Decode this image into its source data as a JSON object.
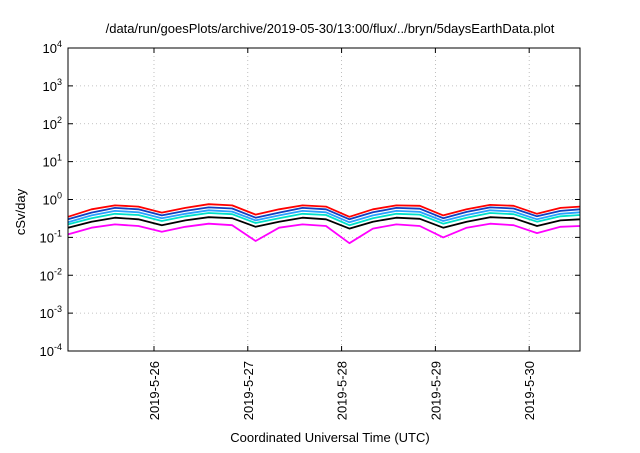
{
  "chart_data": {
    "type": "line",
    "title": "/data/run/goesPlots/archive/2019-05-30/13:00/flux/../bryn/5daysEarthData.plot",
    "xlabel": "Coordinated Universal Time (UTC)",
    "ylabel": "cSv/day",
    "yscale": "log",
    "ylim": [
      0.0001,
      10000
    ],
    "y_ticks": [
      {
        "value": 0.0001,
        "mantissa": "10",
        "exp": "-4"
      },
      {
        "value": 0.001,
        "mantissa": "10",
        "exp": "-3"
      },
      {
        "value": 0.01,
        "mantissa": "10",
        "exp": "-2"
      },
      {
        "value": 0.1,
        "mantissa": "10",
        "exp": "-1"
      },
      {
        "value": 1,
        "mantissa": "10",
        "exp": "0"
      },
      {
        "value": 10,
        "mantissa": "10",
        "exp": "1"
      },
      {
        "value": 100,
        "mantissa": "10",
        "exp": "2"
      },
      {
        "value": 1000,
        "mantissa": "10",
        "exp": "3"
      },
      {
        "value": 10000,
        "mantissa": "10",
        "exp": "4"
      }
    ],
    "xlim": [
      "2019-05-25 02:00",
      "2019-05-30 13:00"
    ],
    "x_ticks": [
      {
        "value": "2019-05-26 00:00",
        "label": "2019-5-26"
      },
      {
        "value": "2019-05-27 00:00",
        "label": "2019-5-27"
      },
      {
        "value": "2019-05-28 00:00",
        "label": "2019-5-28"
      },
      {
        "value": "2019-05-29 00:00",
        "label": "2019-5-29"
      },
      {
        "value": "2019-05-30 00:00",
        "label": "2019-5-30"
      }
    ],
    "grid": true,
    "legend": "none",
    "x": [
      "2019-05-25 02:00",
      "2019-05-25 08:00",
      "2019-05-25 14:00",
      "2019-05-25 20:00",
      "2019-05-26 02:00",
      "2019-05-26 08:00",
      "2019-05-26 14:00",
      "2019-05-26 20:00",
      "2019-05-27 02:00",
      "2019-05-27 08:00",
      "2019-05-27 14:00",
      "2019-05-27 20:00",
      "2019-05-28 02:00",
      "2019-05-28 08:00",
      "2019-05-28 14:00",
      "2019-05-28 20:00",
      "2019-05-29 02:00",
      "2019-05-29 08:00",
      "2019-05-29 14:00",
      "2019-05-29 20:00",
      "2019-05-30 02:00",
      "2019-05-30 08:00",
      "2019-05-30 13:00"
    ],
    "series": [
      {
        "color": "#ff0000",
        "values": [
          0.35,
          0.55,
          0.7,
          0.65,
          0.45,
          0.6,
          0.75,
          0.7,
          0.4,
          0.55,
          0.7,
          0.65,
          0.35,
          0.55,
          0.7,
          0.68,
          0.38,
          0.55,
          0.72,
          0.68,
          0.42,
          0.6,
          0.65
        ]
      },
      {
        "color": "#1040c0",
        "values": [
          0.3,
          0.45,
          0.6,
          0.55,
          0.38,
          0.5,
          0.62,
          0.58,
          0.33,
          0.45,
          0.6,
          0.55,
          0.3,
          0.46,
          0.6,
          0.57,
          0.32,
          0.47,
          0.62,
          0.58,
          0.36,
          0.5,
          0.55
        ]
      },
      {
        "color": "#2aa0ff",
        "values": [
          0.25,
          0.38,
          0.5,
          0.46,
          0.32,
          0.42,
          0.52,
          0.48,
          0.28,
          0.38,
          0.5,
          0.46,
          0.25,
          0.38,
          0.5,
          0.47,
          0.27,
          0.39,
          0.52,
          0.48,
          0.3,
          0.42,
          0.46
        ]
      },
      {
        "color": "#00e0c8",
        "values": [
          0.22,
          0.32,
          0.42,
          0.39,
          0.27,
          0.36,
          0.44,
          0.41,
          0.24,
          0.32,
          0.42,
          0.39,
          0.21,
          0.32,
          0.42,
          0.4,
          0.23,
          0.33,
          0.44,
          0.41,
          0.26,
          0.36,
          0.39
        ]
      },
      {
        "color": "#000000",
        "values": [
          0.18,
          0.26,
          0.33,
          0.3,
          0.21,
          0.28,
          0.34,
          0.32,
          0.19,
          0.26,
          0.33,
          0.3,
          0.17,
          0.26,
          0.33,
          0.31,
          0.18,
          0.26,
          0.34,
          0.32,
          0.2,
          0.28,
          0.3
        ]
      },
      {
        "color": "#ff00ff",
        "values": [
          0.12,
          0.18,
          0.22,
          0.2,
          0.14,
          0.19,
          0.23,
          0.21,
          0.08,
          0.18,
          0.22,
          0.2,
          0.07,
          0.17,
          0.22,
          0.2,
          0.1,
          0.18,
          0.23,
          0.21,
          0.13,
          0.19,
          0.2
        ]
      }
    ]
  }
}
